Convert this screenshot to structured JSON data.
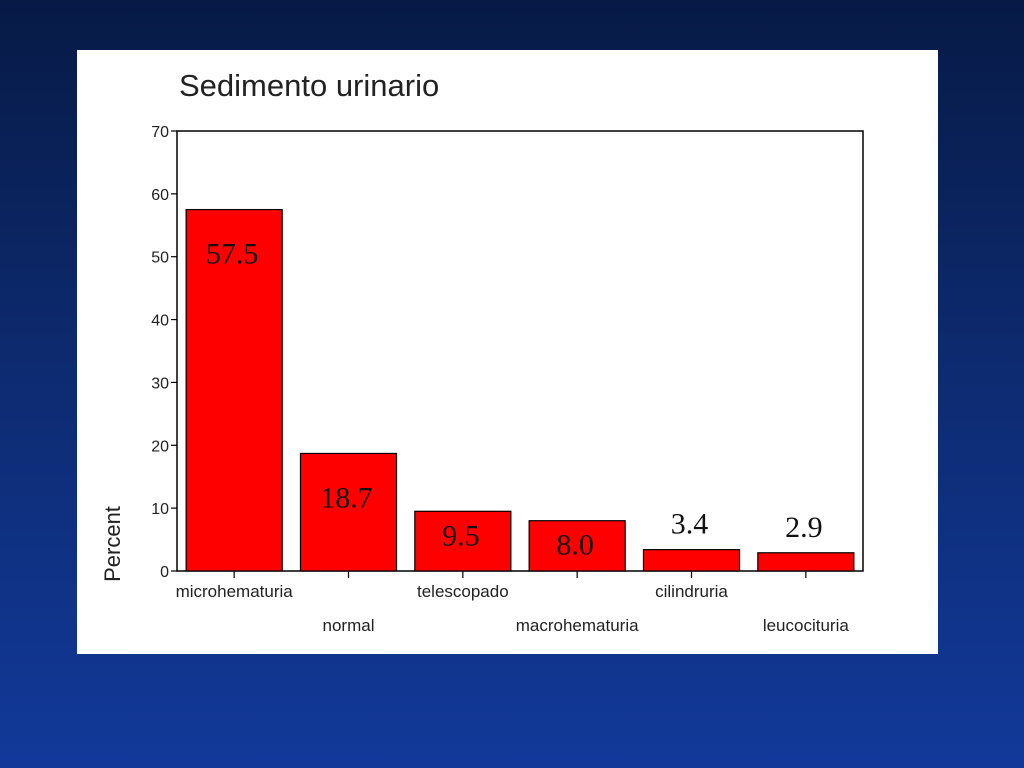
{
  "chart_data": {
    "type": "bar",
    "title": "Sedimento urinario",
    "ylabel": "Percent",
    "xlabel": "",
    "categories": [
      "microhematuria",
      "normal",
      "telescopado",
      "macrohematuria",
      "cilindruria",
      "leucocituria"
    ],
    "values": [
      57.5,
      18.7,
      9.5,
      8.0,
      3.4,
      2.9
    ],
    "data_labels": [
      "57.5",
      "18.7",
      "9.5",
      "8.0",
      "3.4",
      "2.9"
    ],
    "yticks": [
      0,
      10,
      20,
      30,
      40,
      50,
      60,
      70
    ],
    "ylim": [
      0,
      70
    ],
    "bar_color": "#ff0000",
    "grid": false,
    "legend": "none"
  },
  "colors": {
    "background": "#0d2a6e",
    "panel": "#ffffff",
    "bar": "#ff0000"
  }
}
